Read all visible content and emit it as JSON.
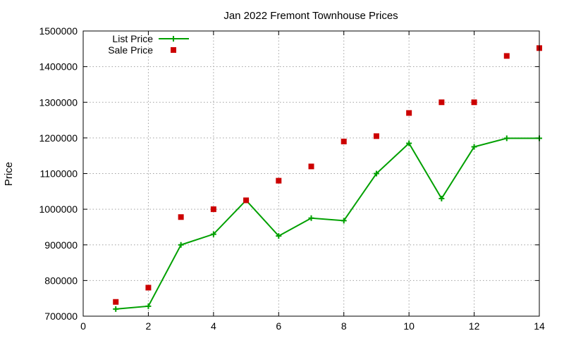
{
  "chart_data": {
    "type": "line",
    "title": "Jan 2022 Fremont Townhouse Prices",
    "xlabel": "",
    "ylabel": "Price",
    "xlim": [
      0,
      14
    ],
    "ylim": [
      700000,
      1500000
    ],
    "x_ticks": [
      0,
      2,
      4,
      6,
      8,
      10,
      12,
      14
    ],
    "y_ticks": [
      700000,
      800000,
      900000,
      1000000,
      1100000,
      1200000,
      1300000,
      1400000,
      1500000
    ],
    "x_tick_labels": [
      "0",
      "2",
      "4",
      "6",
      "8",
      "10",
      "12",
      "14"
    ],
    "y_tick_labels": [
      "700000",
      "800000",
      "900000",
      "1000000",
      "1100000",
      "1200000",
      "1300000",
      "1400000",
      "1500000"
    ],
    "grid": true,
    "legend_position": "top-left",
    "series": [
      {
        "name": "List Price",
        "style": "line-with-plus-markers",
        "color": "#00a000",
        "x": [
          1,
          2,
          3,
          4,
          5,
          6,
          7,
          8,
          9,
          10,
          11,
          12,
          13,
          14
        ],
        "y": [
          720000,
          728000,
          900000,
          930000,
          1025000,
          925000,
          975000,
          968000,
          1100000,
          1185000,
          1030000,
          1175000,
          1199000,
          1199000
        ]
      },
      {
        "name": "Sale Price",
        "style": "square-markers",
        "color": "#cc0000",
        "x": [
          1,
          2,
          3,
          4,
          5,
          6,
          7,
          8,
          9,
          10,
          11,
          12,
          13,
          14
        ],
        "y": [
          740000,
          780000,
          978000,
          1000000,
          1025000,
          1080000,
          1120000,
          1190000,
          1205000,
          1270000,
          1300000,
          1300000,
          1430000,
          1452000
        ]
      }
    ]
  }
}
